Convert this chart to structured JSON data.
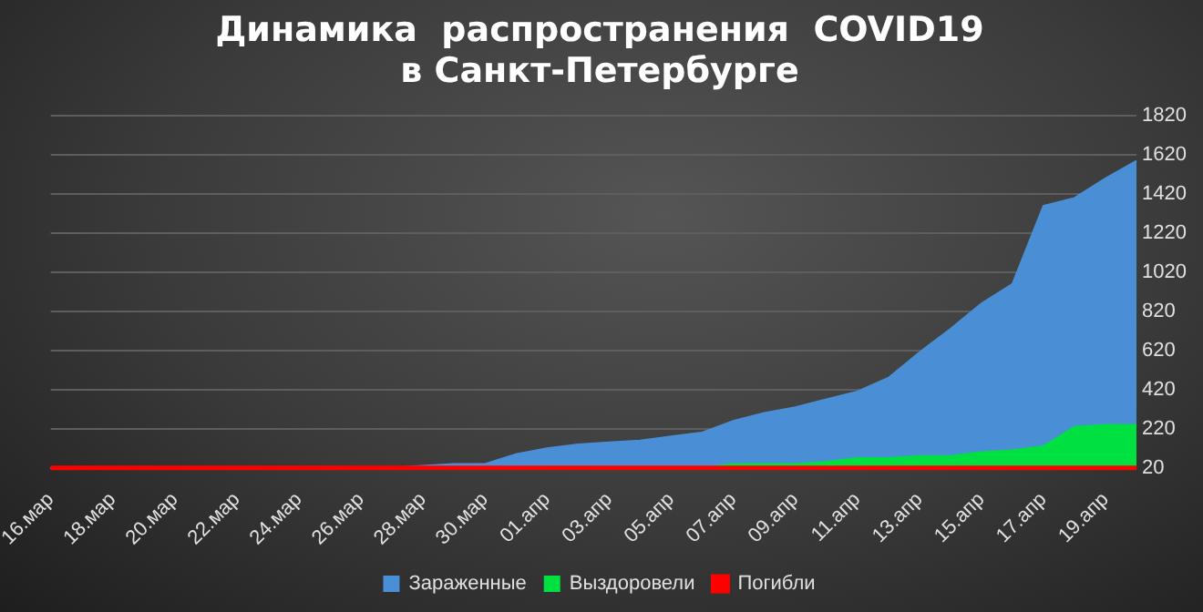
{
  "chart_data": {
    "type": "area",
    "title": "Динамика  распространения  COVID19\nв Санкт-Петербурге",
    "categories": [
      "16.мар",
      null,
      "18.мар",
      null,
      "20.мар",
      null,
      "22.мар",
      null,
      "24.мар",
      null,
      "26.мар",
      null,
      "28.мар",
      null,
      "30.мар",
      null,
      "01.апр",
      null,
      "03.апр",
      null,
      "05.апр",
      null,
      "07.апр",
      null,
      "09.апр",
      null,
      "11.апр",
      null,
      "13.апр",
      null,
      "15.апр",
      null,
      "17.апр",
      null,
      "19.апр",
      null
    ],
    "series": [
      {
        "name": "Зараженные",
        "color": "#4a8fd6",
        "values": [
          20,
          20,
          20,
          20,
          20,
          20,
          20,
          20,
          20,
          20,
          20,
          20,
          30,
          40,
          40,
          90,
          120,
          140,
          150,
          160,
          180,
          200,
          260,
          300,
          330,
          370,
          410,
          480,
          610,
          730,
          860,
          960,
          1360,
          1400,
          1500,
          1590
        ]
      },
      {
        "name": "Выздоровели",
        "color": "#00e040",
        "values": [
          20,
          20,
          20,
          20,
          20,
          20,
          20,
          20,
          20,
          20,
          20,
          20,
          20,
          20,
          20,
          20,
          20,
          20,
          20,
          20,
          20,
          20,
          40,
          40,
          40,
          50,
          70,
          70,
          80,
          80,
          100,
          110,
          130,
          230,
          240,
          240
        ]
      },
      {
        "name": "Погибли",
        "type": "line",
        "color": "#ff0000",
        "values": [
          20,
          20,
          20,
          20,
          20,
          20,
          20,
          20,
          20,
          20,
          20,
          20,
          20,
          20,
          20,
          20,
          20,
          20,
          20,
          20,
          20,
          20,
          20,
          20,
          20,
          20,
          20,
          20,
          20,
          20,
          20,
          20,
          20,
          20,
          20,
          20
        ]
      }
    ],
    "ylim": [
      20,
      1820
    ],
    "yticks": [
      20,
      220,
      420,
      620,
      820,
      1020,
      1220,
      1420,
      1620,
      1820
    ],
    "grid": "y",
    "legend": "bottom"
  }
}
